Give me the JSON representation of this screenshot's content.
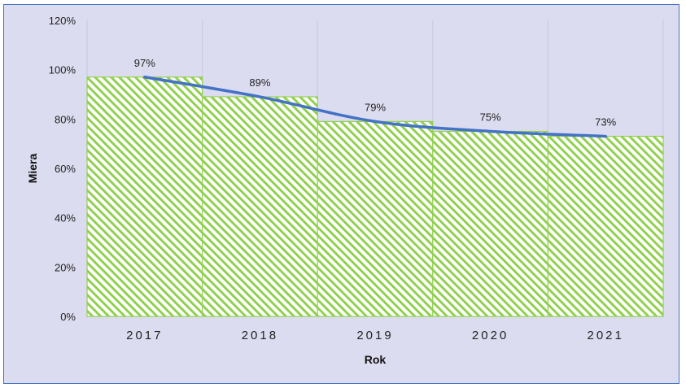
{
  "chart_data": {
    "type": "bar",
    "categories": [
      "2017",
      "2018",
      "2019",
      "2020",
      "2021"
    ],
    "values": [
      97,
      89,
      79,
      75,
      73
    ],
    "data_labels": [
      "97%",
      "89%",
      "79%",
      "75%",
      "73%"
    ],
    "yticks": [
      "0%",
      "20%",
      "40%",
      "60%",
      "80%",
      "100%",
      "120%"
    ],
    "ylim": [
      0,
      120
    ],
    "xlabel": "Rok",
    "ylabel": "Miera",
    "trendline": {
      "type": "smooth line",
      "values": [
        97,
        89,
        79,
        75,
        73
      ]
    },
    "grid": "vertical lines",
    "legend": "none",
    "colors": {
      "bar_hatch": "#92d050",
      "bar_fill": "#ffffff",
      "trendline": "#4472c4",
      "plot_background": "#dcdcf0",
      "frame_border": "#4472c4"
    }
  }
}
